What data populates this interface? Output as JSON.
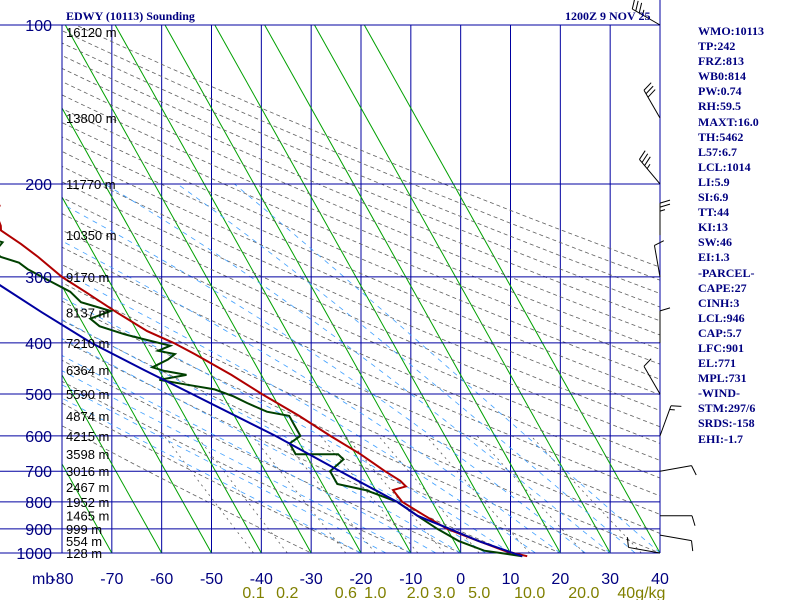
{
  "header": {
    "title": "EDWY (10113) Sounding",
    "time": "1200Z  9 NOV 25"
  },
  "indices": [
    "WMO:10113",
    "TP:242",
    "FRZ:813",
    "WB0:814",
    "PW:0.74",
    "RH:59.5",
    "MAXT:16.0",
    "TH:5462",
    "L57:6.7",
    "LCL:1014",
    "LI:5.9",
    "SI:6.9",
    "TT:44",
    "KI:13",
    "SW:46",
    "EI:1.3",
    "-PARCEL-",
    "CAPE:27",
    "CINH:3",
    "LCL:946",
    "CAP:5.7",
    "LFC:901",
    "EL:771",
    "MPL:731",
    "-WIND-",
    "STM:297/6",
    "SRDS:-158",
    "EHI:-1.7"
  ],
  "chart_data": {
    "type": "line",
    "title": "EDWY (10113) Sounding",
    "subtitle": "1200Z  9 NOV 25",
    "y_axis_unit_label": "mb",
    "pressure_ticks": [
      100,
      200,
      300,
      400,
      500,
      600,
      700,
      800,
      900,
      1000
    ],
    "pressure_log_scale": true,
    "ylim": [
      1050,
      100
    ],
    "temperature_ticks": [
      -80,
      -70,
      -60,
      -50,
      -40,
      -30,
      -20,
      -10,
      0,
      10,
      20,
      30,
      40
    ],
    "temperature_tick_labels": [
      "-80",
      "-70",
      "-60",
      "-50",
      "-40",
      "-30",
      "-20",
      "-10",
      "0",
      "10",
      "20",
      "30",
      "40"
    ],
    "xlim": [
      -80,
      40
    ],
    "mixing_ratio_labels": [
      "0.1",
      "0.2",
      "0.6",
      "1.0",
      "2.0",
      "3.0",
      "5.0",
      "10.0",
      "20.0",
      "40g/kg"
    ],
    "mixing_ratio_values": [
      0.1,
      0.2,
      0.6,
      1.0,
      2.0,
      3.0,
      5.0,
      10.0,
      20.0,
      40.0
    ],
    "height_labels": [
      {
        "p": 103,
        "text": "16120 m"
      },
      {
        "p": 150,
        "text": "13800 m"
      },
      {
        "p": 200,
        "text": "11770 m"
      },
      {
        "p": 250,
        "text": "10350 m"
      },
      {
        "p": 300,
        "text": "9170 m"
      },
      {
        "p": 350,
        "text": "8137 m"
      },
      {
        "p": 400,
        "text": "7210 m"
      },
      {
        "p": 450,
        "text": "6364 m"
      },
      {
        "p": 500,
        "text": "5590 m"
      },
      {
        "p": 550,
        "text": "4874 m"
      },
      {
        "p": 600,
        "text": "4215 m"
      },
      {
        "p": 650,
        "text": "3598 m"
      },
      {
        "p": 700,
        "text": "3016 m"
      },
      {
        "p": 750,
        "text": "2467 m"
      },
      {
        "p": 800,
        "text": "1952 m"
      },
      {
        "p": 850,
        "text": "1465 m"
      },
      {
        "p": 900,
        "text": "999 m"
      },
      {
        "p": 950,
        "text": "554 m"
      },
      {
        "p": 1000,
        "text": "128 m"
      }
    ],
    "series": [
      {
        "color": "#b00000",
        "points": [
          [
            1014,
            13
          ],
          [
            1000,
            10.5
          ],
          [
            990,
            9
          ],
          [
            940,
            4
          ],
          [
            900,
            0
          ],
          [
            850,
            -3
          ],
          [
            800,
            -6
          ],
          [
            760,
            -6.5
          ],
          [
            748,
            -3.5
          ],
          [
            730,
            -4
          ],
          [
            700,
            -6
          ],
          [
            650,
            -9
          ],
          [
            600,
            -13
          ],
          [
            550,
            -17
          ],
          [
            500,
            -22
          ],
          [
            460,
            -26
          ],
          [
            420,
            -31
          ],
          [
            400,
            -34
          ],
          [
            380,
            -38
          ],
          [
            350,
            -42
          ],
          [
            320,
            -46
          ],
          [
            300,
            -49
          ],
          [
            275,
            -51.5
          ],
          [
            260,
            -53.5
          ],
          [
            245,
            -56
          ],
          [
            240,
            -55.5
          ],
          [
            225,
            -55
          ],
          [
            220,
            -53.5
          ],
          [
            200,
            -53
          ],
          [
            150,
            -57
          ],
          [
            140,
            -57.5
          ],
          [
            125,
            -60
          ],
          [
            100,
            -63
          ]
        ]
      },
      {
        "color": "#004000",
        "points": [
          [
            1014,
            12
          ],
          [
            1000,
            8
          ],
          [
            990,
            5
          ],
          [
            950,
            1
          ],
          [
            900,
            -2
          ],
          [
            860,
            -4
          ],
          [
            800,
            -7
          ],
          [
            760,
            -12
          ],
          [
            740,
            -17
          ],
          [
            700,
            -17
          ],
          [
            665,
            -13
          ],
          [
            650,
            -13.5
          ],
          [
            650,
            -22
          ],
          [
            620,
            -22
          ],
          [
            600,
            -19
          ],
          [
            575,
            -19
          ],
          [
            550,
            -19
          ],
          [
            540,
            -23
          ],
          [
            520,
            -26
          ],
          [
            505,
            -28
          ],
          [
            490,
            -31
          ],
          [
            480,
            -36
          ],
          [
            470,
            -41
          ],
          [
            465,
            -38
          ],
          [
            460,
            -35
          ],
          [
            452,
            -39
          ],
          [
            445,
            -41
          ],
          [
            430,
            -37
          ],
          [
            420,
            -35
          ],
          [
            414,
            -38
          ],
          [
            405,
            -35
          ],
          [
            395,
            -39
          ],
          [
            385,
            -43
          ],
          [
            372,
            -47
          ],
          [
            360,
            -48
          ],
          [
            348,
            -43
          ],
          [
            335,
            -48
          ],
          [
            320,
            -49
          ],
          [
            300,
            -53
          ],
          [
            290,
            -55
          ],
          [
            282,
            -56
          ],
          [
            275,
            -59
          ],
          [
            268,
            -60
          ],
          [
            262,
            -58
          ],
          [
            258,
            -57
          ],
          [
            250,
            -61
          ],
          [
            240,
            -64
          ],
          [
            220,
            -68
          ],
          [
            200,
            -72
          ],
          [
            180,
            -77
          ],
          [
            160,
            -80
          ]
        ]
      },
      {
        "color": "#0000a0",
        "points": [
          [
            1014,
            12
          ],
          [
            950,
            5
          ],
          [
            900,
            0.5
          ],
          [
            870,
            -2.5
          ],
          [
            850,
            -4.5
          ],
          [
            800,
            -7
          ],
          [
            700,
            -15
          ],
          [
            600,
            -24
          ],
          [
            500,
            -36
          ],
          [
            450,
            -43
          ],
          [
            400,
            -50.5
          ],
          [
            350,
            -57
          ],
          [
            300,
            -64
          ],
          [
            250,
            -71
          ],
          [
            210,
            -77
          ],
          [
            200,
            -80
          ]
        ]
      }
    ],
    "wind_barbs": [
      {
        "p": 100,
        "dir": 300,
        "speed": 25
      },
      {
        "p": 150,
        "dir": 330,
        "speed": 30
      },
      {
        "p": 200,
        "dir": 320,
        "speed": 25
      },
      {
        "p": 250,
        "dir": 360,
        "speed": 15
      },
      {
        "p": 300,
        "dir": 350,
        "speed": 10
      },
      {
        "p": 400,
        "dir": 360,
        "speed": 10
      },
      {
        "p": 500,
        "dir": 330,
        "speed": 10
      },
      {
        "p": 600,
        "dir": 20,
        "speed": 5
      },
      {
        "p": 700,
        "dir": 80,
        "speed": 10
      },
      {
        "p": 850,
        "dir": 90,
        "speed": 10
      },
      {
        "p": 925,
        "dir": 100,
        "speed": 10
      },
      {
        "p": 1000,
        "dir": 280,
        "speed": 10
      }
    ],
    "colors": {
      "axis_text": "#000080",
      "mixing_label": "#808000",
      "isobar": "#0000a0",
      "isotherm": "#00a000",
      "dry_adiabat": "#606060",
      "moist_adiabat": "#40a0ff",
      "temperature": "#b00000",
      "dewpoint": "#004000",
      "parcel": "#0000a0",
      "barb": "#000000"
    }
  }
}
